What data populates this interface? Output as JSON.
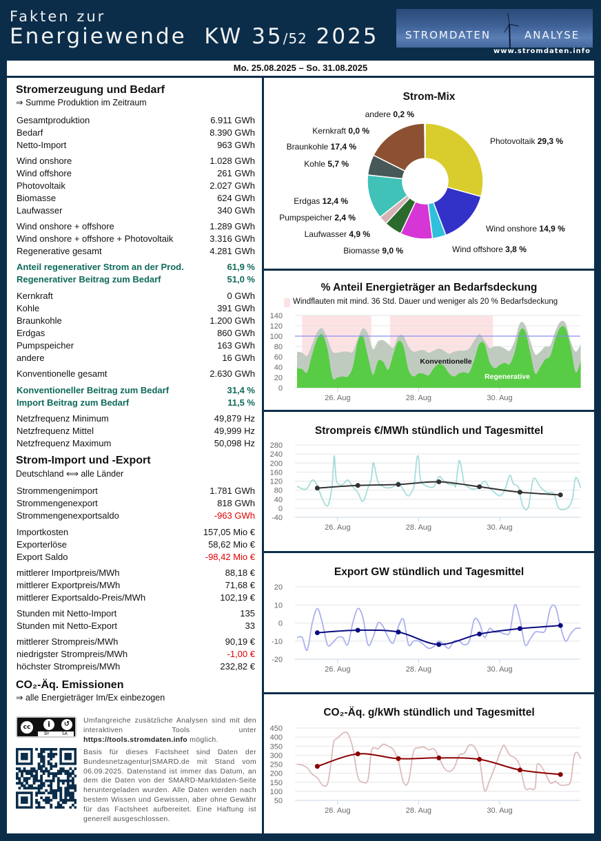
{
  "header": {
    "line1": "Fakten zur",
    "line2": "Energiewende  KW 35",
    "week_total": "/52",
    "year": " 2025",
    "logo_left": "STROMDATEN",
    "logo_right": "ANALYSE",
    "url": "www.stromdaten.info"
  },
  "date_range": "Mo. 25.08.2025 – So. 31.08.2025",
  "left": {
    "s1_title": "Stromerzeugung und Bedarf",
    "s1_sub": "⇒ Summe Produktion im Zeitraum",
    "groups": [
      [
        [
          "Gesamtproduktion",
          "6.911 GWh"
        ],
        [
          "Bedarf",
          "8.390 GWh"
        ],
        [
          "Netto-Import",
          "963 GWh"
        ]
      ],
      [
        [
          "Wind onshore",
          "1.028 GWh"
        ],
        [
          "Wind offshore",
          "261 GWh"
        ],
        [
          "Photovoltaik",
          "2.027 GWh"
        ],
        [
          "Biomasse",
          "624 GWh"
        ],
        [
          "Laufwasser",
          "340 GWh"
        ]
      ],
      [
        [
          "Wind onshore + offshore",
          "1.289 GWh"
        ],
        [
          "Wind onshore + offshore + Photovoltaik",
          "3.316 GWh"
        ],
        [
          "Regenerative gesamt",
          "4.281 GWh"
        ]
      ],
      [
        [
          "Anteil regenerativer Strom an der Prod.",
          "61,9 %"
        ],
        [
          "Regenerativer Beitrag zum Bedarf",
          "51,0 %"
        ]
      ],
      [
        [
          "Kernkraft",
          "0 GWh"
        ],
        [
          "Kohle",
          "391 GWh"
        ],
        [
          "Braunkohle",
          "1.200 GWh"
        ],
        [
          "Erdgas",
          "860 GWh"
        ],
        [
          "Pumpspeicher",
          "163 GWh"
        ],
        [
          "andere",
          "16 GWh"
        ]
      ],
      [
        [
          "Konventionelle gesamt",
          "2.630 GWh"
        ]
      ],
      [
        [
          "Konventioneller Beitrag zum Bedarf",
          "31,4 %"
        ],
        [
          "Import Beitrag zum Bedarf",
          "11,5 %"
        ]
      ],
      [
        [
          "Netzfrequenz Minimum",
          "49,879 Hz"
        ],
        [
          "Netzfrequenz Mittel",
          "49,999 Hz"
        ],
        [
          "Netzfrequenz Maximum",
          "50,098 Hz"
        ]
      ],
      [
        [
          "Strommengenimport",
          "1.781 GWh"
        ],
        [
          "Strommengenexport",
          "818 GWh"
        ],
        [
          "Strommengenexportsaldo",
          "-963 GWh"
        ]
      ],
      [
        [
          "Importkosten",
          "157,05 Mio €"
        ],
        [
          "Exporterlöse",
          "58,62 Mio €"
        ],
        [
          "Export Saldo",
          "-98,42 Mio €"
        ]
      ],
      [
        [
          "mittlerer Importpreis/MWh",
          "88,18 €"
        ],
        [
          "mittlerer Exportpreis/MWh",
          "71,68 €"
        ],
        [
          "mittlerer Exportsaldo-Preis/MWh",
          "102,19 €"
        ]
      ],
      [
        [
          "Stunden mit Netto-Import",
          "135"
        ],
        [
          "Stunden mit Netto-Export",
          "33"
        ]
      ],
      [
        [
          "mittlerer Strompreis/MWh",
          "90,19 €"
        ],
        [
          "niedrigster Strompreis/MWh",
          "-1,00 €"
        ],
        [
          "höchster Strompreis/MWh",
          "232,82 €"
        ]
      ]
    ],
    "highlight_groups": [
      3,
      6
    ],
    "negative_values": [
      "-963 GWh",
      "-98,42 Mio €",
      "-1,00 €"
    ],
    "s2_title": "Strom-Import und -Export",
    "s2_sub": "Deutschland ⟺ alle Länder",
    "s3_title": "CO₂-Äq. Emissionen",
    "s3_sub": "⇒ alle Energieträger Im/Ex einbezogen",
    "license_icon": "cc-by-sa-icon",
    "license_labels": [
      "BY",
      "SA"
    ],
    "footer_p1_pre": "Umfangreiche zusätzliche Analysen sind mit den interaktiven Tools unter ",
    "footer_link": "https://tools.stromdaten.info",
    "footer_p1_post": " möglich.",
    "footer_p2": "Basis für dieses Factsheet sind Daten der Bundesnetzagentur|SMARD.de mit Stand vom 06.09.2025. Datenstand ist immer das Datum, an dem die Daten von der SMARD-Marktdaten-Seite heruntergeladen wurden. Alle Daten werden nach bestem Wissen und Gewissen, aber ohne Gewähr für das Factsheet aufbereitet. Eine Haftung ist generell ausgeschlossen."
  },
  "chart_data": [
    {
      "type": "pie",
      "title": "Strom-Mix",
      "donut": true,
      "slices": [
        {
          "label": "Photovoltaik",
          "value": 29.3,
          "text": "29,3 %",
          "color": "#d8cd2c"
        },
        {
          "label": "Wind onshore",
          "value": 14.9,
          "text": "14,9 %",
          "color": "#3232c8"
        },
        {
          "label": "Wind offshore",
          "value": 3.8,
          "text": "3,8 %",
          "color": "#2fc0dc"
        },
        {
          "label": "Biomasse",
          "value": 9.0,
          "text": "9,0 %",
          "color": "#d636d6"
        },
        {
          "label": "Laufwasser",
          "value": 4.9,
          "text": "4,9 %",
          "color": "#2a6a2c"
        },
        {
          "label": "Pumpspeicher",
          "value": 2.4,
          "text": "2,4 %",
          "color": "#d6b2b6"
        },
        {
          "label": "Erdgas",
          "value": 12.4,
          "text": "12,4 %",
          "color": "#40c2b8"
        },
        {
          "label": "Kohle",
          "value": 5.7,
          "text": "5,7 %",
          "color": "#475858"
        },
        {
          "label": "Braunkohle",
          "value": 17.4,
          "text": "17,4 %",
          "color": "#8b5132"
        },
        {
          "label": "Kernkraft",
          "value": 0.0,
          "text": "0,0 %",
          "color": "#cccccc"
        },
        {
          "label": "andere",
          "value": 0.2,
          "text": "0,2 %",
          "color": "#cccccc"
        }
      ]
    },
    {
      "type": "area",
      "title": "% Anteil Energieträger an Bedarfsdeckung",
      "legend": "Windflauten mit mind. 36 Std. Dauer und weniger als 20 % Bedarfsdeckung",
      "x_unit": "hours since Mo. 25.08.2025 00:00",
      "xticks": [
        {
          "x": 24,
          "label": "26. Aug"
        },
        {
          "x": 72,
          "label": "28. Aug"
        },
        {
          "x": 120,
          "label": "30. Aug"
        }
      ],
      "ylim": [
        0,
        140
      ],
      "yticks": [
        0,
        20,
        40,
        60,
        80,
        100,
        120,
        140
      ],
      "reference_line": 100,
      "calm_periods": [
        [
          3,
          44
        ],
        [
          55,
          116
        ]
      ],
      "series": [
        {
          "name": "Konventionelle",
          "color": "#c0cbc0",
          "x": [
            0,
            3,
            6,
            9,
            12,
            15,
            18,
            21,
            24,
            27,
            30,
            33,
            36,
            39,
            42,
            45,
            48,
            51,
            54,
            57,
            60,
            63,
            66,
            69,
            72,
            75,
            78,
            81,
            84,
            87,
            90,
            93,
            96,
            99,
            102,
            105,
            108,
            111,
            114,
            117,
            120,
            123,
            126,
            129,
            132,
            135,
            138,
            141,
            144,
            147,
            150,
            153,
            156,
            159,
            162,
            165,
            168
          ],
          "y": [
            70,
            68,
            62,
            85,
            108,
            115,
            95,
            70,
            68,
            70,
            70,
            70,
            95,
            115,
            105,
            75,
            90,
            92,
            85,
            78,
            100,
            100,
            80,
            70,
            72,
            73,
            68,
            72,
            76,
            72,
            66,
            70,
            72,
            72,
            76,
            92,
            104,
            92,
            77,
            80,
            80,
            76,
            72,
            92,
            125,
            122,
            92,
            65,
            70,
            80,
            82,
            110,
            128,
            125,
            90,
            70,
            84
          ]
        },
        {
          "name": "Regenerative",
          "color": "#58cc44",
          "x": [
            0,
            3,
            6,
            9,
            12,
            15,
            18,
            21,
            24,
            27,
            30,
            33,
            36,
            39,
            42,
            45,
            48,
            51,
            54,
            57,
            60,
            63,
            66,
            69,
            72,
            75,
            78,
            81,
            84,
            87,
            90,
            93,
            96,
            99,
            102,
            105,
            108,
            111,
            114,
            117,
            120,
            123,
            126,
            129,
            132,
            135,
            138,
            141,
            144,
            147,
            150,
            153,
            156,
            159,
            162,
            165,
            168
          ],
          "y": [
            38,
            36,
            30,
            65,
            95,
            103,
            75,
            20,
            20,
            22,
            22,
            40,
            90,
            100,
            60,
            25,
            52,
            50,
            35,
            65,
            90,
            80,
            35,
            22,
            28,
            27,
            24,
            38,
            46,
            42,
            28,
            22,
            28,
            30,
            30,
            55,
            85,
            85,
            50,
            38,
            44,
            48,
            46,
            70,
            110,
            110,
            70,
            28,
            40,
            55,
            62,
            95,
            117,
            115,
            80,
            30,
            52
          ]
        }
      ]
    },
    {
      "type": "line",
      "title": "Strompreis €/MWh stündlich und Tagesmittel",
      "xticks": [
        {
          "x": 24,
          "label": "26. Aug"
        },
        {
          "x": 72,
          "label": "28. Aug"
        },
        {
          "x": 120,
          "label": "30. Aug"
        }
      ],
      "ylim": [
        -40,
        280
      ],
      "yticks": [
        -40,
        0,
        40,
        80,
        120,
        160,
        200,
        240,
        280
      ],
      "hourly": {
        "color": "#a6dcdc",
        "x": [
          0,
          3,
          6,
          9,
          12,
          15,
          18,
          20,
          21,
          22,
          23,
          24,
          27,
          30,
          33,
          36,
          39,
          42,
          44,
          45,
          46,
          48,
          51,
          54,
          57,
          60,
          63,
          66,
          69,
          70,
          71,
          72,
          73,
          75,
          78,
          81,
          84,
          87,
          90,
          93,
          94,
          96,
          98,
          99,
          102,
          105,
          108,
          111,
          114,
          117,
          120,
          123,
          126,
          128,
          131,
          132,
          134,
          137,
          140,
          144,
          148,
          152,
          155,
          160,
          163,
          165,
          168
        ],
        "y": [
          98,
          86,
          88,
          125,
          100,
          40,
          10,
          60,
          120,
          232,
          140,
          110,
          105,
          125,
          95,
          70,
          30,
          90,
          130,
          200,
          180,
          115,
          95,
          90,
          95,
          115,
          80,
          55,
          90,
          150,
          222,
          222,
          130,
          105,
          95,
          95,
          140,
          120,
          105,
          105,
          100,
          210,
          150,
          110,
          90,
          85,
          95,
          120,
          90,
          70,
          55,
          80,
          145,
          110,
          95,
          60,
          5,
          5,
          130,
          95,
          70,
          65,
          0,
          0,
          40,
          135,
          90
        ]
      },
      "daily_mean": {
        "color": "#333333",
        "x": [
          12,
          36,
          60,
          84,
          108,
          132,
          156
        ],
        "y": [
          89,
          101,
          105,
          117,
          95,
          71,
          59
        ]
      }
    },
    {
      "type": "line",
      "title": "Export GW stündlich und Tagesmittel",
      "xticks": [
        {
          "x": 24,
          "label": "26. Aug"
        },
        {
          "x": 72,
          "label": "28. Aug"
        },
        {
          "x": 120,
          "label": "30. Aug"
        }
      ],
      "ylim": [
        -20,
        20
      ],
      "yticks": [
        -20,
        -10,
        0,
        10,
        20
      ],
      "hourly": {
        "color": "#aab0ee",
        "x": [
          0,
          3,
          6,
          9,
          12,
          15,
          18,
          21,
          24,
          27,
          30,
          33,
          36,
          39,
          42,
          45,
          48,
          51,
          54,
          57,
          60,
          63,
          66,
          69,
          72,
          75,
          78,
          81,
          84,
          87,
          90,
          93,
          96,
          99,
          102,
          105,
          108,
          111,
          114,
          117,
          120,
          123,
          126,
          129,
          132,
          135,
          138,
          141,
          144,
          147,
          150,
          153,
          156,
          159,
          162,
          165,
          168
        ],
        "y": [
          -8,
          -8,
          -15,
          0,
          8,
          0,
          -12,
          -11,
          -8,
          -8,
          -12,
          0,
          8,
          3,
          -12,
          -8,
          0,
          -2,
          -8,
          -11,
          -2,
          2,
          -12,
          -10,
          -10,
          -12,
          -14,
          -13,
          -10,
          -12,
          -14,
          -10,
          -10,
          -12,
          -10,
          2,
          0,
          -8,
          -3,
          -5,
          -5,
          -6,
          -5,
          10,
          2,
          -12,
          -9,
          -5,
          -5,
          -4,
          8,
          9,
          -2,
          -10,
          -6,
          -3,
          -3
        ]
      },
      "daily_mean": {
        "color": "#0a0a80",
        "x": [
          12,
          36,
          60,
          84,
          108,
          132,
          156
        ],
        "y": [
          -5.4,
          -4.0,
          -5.0,
          -11.9,
          -6.1,
          -3.1,
          -1.4
        ]
      }
    },
    {
      "type": "line",
      "title": "CO₂-Äq. g/kWh stündlich und Tagesmittel",
      "xticks": [
        {
          "x": 24,
          "label": "26. Aug"
        },
        {
          "x": 72,
          "label": "28. Aug"
        },
        {
          "x": 120,
          "label": "30. Aug"
        }
      ],
      "ylim": [
        50,
        450
      ],
      "yticks": [
        50,
        100,
        150,
        200,
        250,
        300,
        350,
        400,
        450
      ],
      "hourly": {
        "color": "#dcbcbc",
        "x": [
          0,
          3,
          6,
          9,
          12,
          15,
          18,
          20,
          21,
          22,
          24,
          27,
          30,
          33,
          36,
          39,
          42,
          44,
          46,
          48,
          51,
          54,
          57,
          60,
          63,
          66,
          69,
          72,
          75,
          78,
          81,
          84,
          87,
          90,
          93,
          96,
          99,
          102,
          105,
          108,
          111,
          114,
          117,
          120,
          122,
          123,
          126,
          129,
          132,
          135,
          138,
          141,
          142,
          144,
          147,
          150,
          153,
          156,
          159,
          162,
          164,
          166,
          168
        ],
        "y": [
          250,
          245,
          230,
          195,
          175,
          135,
          140,
          250,
          330,
          380,
          395,
          420,
          420,
          340,
          180,
          150,
          165,
          320,
          340,
          335,
          360,
          350,
          330,
          270,
          150,
          155,
          320,
          340,
          345,
          330,
          335,
          290,
          230,
          210,
          230,
          300,
          310,
          355,
          345,
          280,
          105,
          160,
          230,
          310,
          350,
          350,
          300,
          285,
          240,
          120,
          115,
          120,
          240,
          245,
          200,
          145,
          155,
          135,
          135,
          155,
          290,
          315,
          280
        ]
      },
      "daily_mean": {
        "color": "#8b0000",
        "x": [
          12,
          36,
          60,
          84,
          108,
          132,
          156
        ],
        "y": [
          238,
          307,
          281,
          285,
          277,
          218,
          193
        ]
      }
    }
  ]
}
